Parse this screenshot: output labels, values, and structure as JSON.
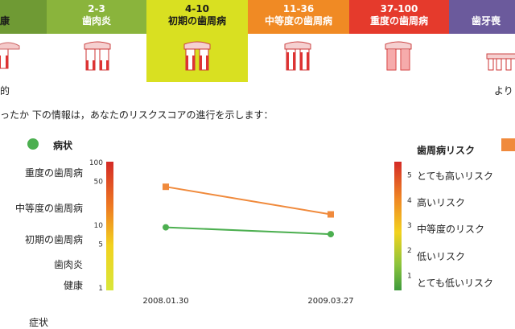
{
  "header": {
    "bands": [
      {
        "range": "",
        "label": "康",
        "color": "#6f9a34"
      },
      {
        "range": "2-3",
        "label": "歯肉炎",
        "color": "#8ab43c"
      },
      {
        "range": "4-10",
        "label": "初期の歯周病",
        "color": "#d9e021"
      },
      {
        "range": "11-36",
        "label": "中等度の歯周病",
        "color": "#f08a24"
      },
      {
        "range": "37-100",
        "label": "重度の歯周病",
        "color": "#e53a2c"
      },
      {
        "range": "",
        "label": "歯牙喪",
        "color": "#6b5a9c"
      }
    ],
    "left_fragment": "的",
    "right_fragment": "より"
  },
  "intro_text": "ったか 下の情報は，あなたのリスクスコアの進行を示します：",
  "left_legend": {
    "title": "病状",
    "color": "#4caf50"
  },
  "right_legend": {
    "title": "歯周病リスク",
    "color": "#f08a3c"
  },
  "left_scale_labels": [
    "重度の歯周病",
    "中等度の歯周病",
    "初期の歯周病",
    "歯肉炎",
    "健康"
  ],
  "right_scale_labels": [
    "とても高いリスク",
    "高いリスク",
    "中等度のリスク",
    "低いリスク",
    "とても低いリスク"
  ],
  "bottom_fragment": "症状",
  "chart_data": {
    "type": "line",
    "categories": [
      "2008.01.30",
      "2009.03.27"
    ],
    "series": [
      {
        "name": "歯周病リスク",
        "axis": "right",
        "color": "#f08a3c",
        "values": [
          4.5,
          3.4
        ]
      },
      {
        "name": "病状",
        "axis": "left",
        "color": "#4caf50",
        "values": [
          9,
          7
        ]
      }
    ],
    "left_axis": {
      "scale": "log",
      "ticks": [
        "1",
        "5",
        "10",
        "50",
        "100"
      ],
      "ylim": [
        1,
        100
      ]
    },
    "right_axis": {
      "scale": "linear",
      "ticks": [
        "1",
        "2",
        "3",
        "4",
        "5"
      ],
      "ylim": [
        0.5,
        5.5
      ]
    },
    "grid": false,
    "title": "",
    "xlabel": "",
    "ylabel": ""
  }
}
